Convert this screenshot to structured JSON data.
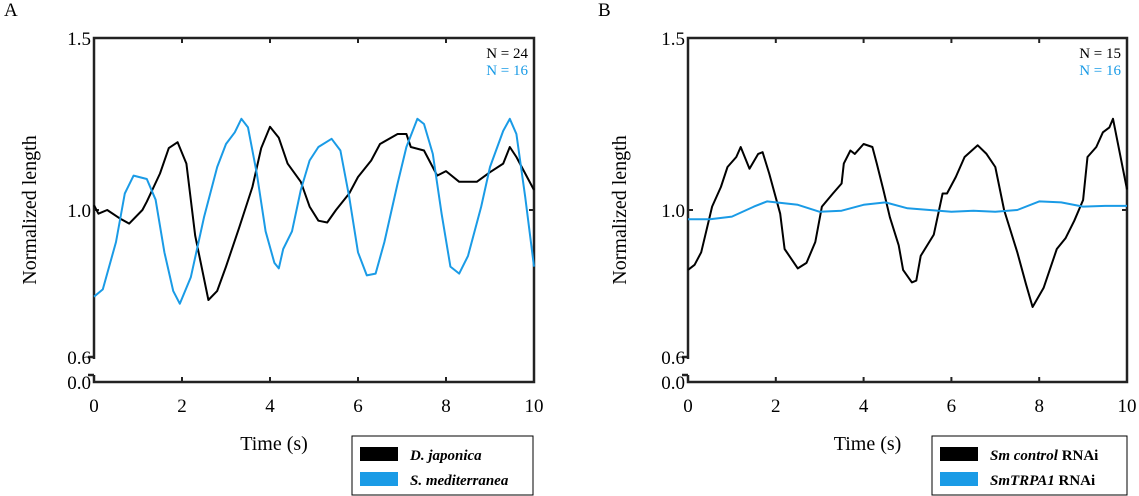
{
  "colors": {
    "black": "#000000",
    "blue": "#1a9be6"
  },
  "chart_data": [
    {
      "type": "line",
      "panel_label": "A",
      "xlabel": "Time (s)",
      "ylabel": "Normalized length",
      "xlim": [
        0,
        10
      ],
      "ylim": [
        0.0,
        1.5
      ],
      "xticks": [
        "0",
        "2",
        "4",
        "6",
        "8",
        "10"
      ],
      "yticks": [
        "0.0",
        "0.6",
        "1.0",
        "1.5"
      ],
      "annotations": [
        {
          "text": "N = 24",
          "color": "black"
        },
        {
          "text": "N = 16",
          "color": "blue"
        }
      ],
      "legend_position": "bottom-right-outside",
      "series": [
        {
          "name": "D. japonica",
          "color": "black",
          "x": [
            0,
            0.1,
            0.3,
            0.6,
            0.8,
            1.1,
            1.2,
            1.5,
            1.7,
            1.9,
            2.1,
            2.3,
            2.6,
            2.8,
            3.0,
            3.3,
            3.6,
            3.8,
            4.0,
            4.2,
            4.4,
            4.7,
            4.9,
            5.1,
            5.3,
            5.5,
            5.8,
            6.0,
            6.3,
            6.5,
            6.9,
            7.1,
            7.2,
            7.5,
            7.8,
            8.0,
            8.3,
            8.7,
            9.0,
            9.3,
            9.45,
            9.6,
            9.8,
            10
          ],
          "y": [
            1.014,
            0.99,
            1.0,
            0.976,
            0.963,
            1.0,
            1.024,
            1.106,
            1.18,
            1.197,
            1.135,
            0.93,
            0.755,
            0.78,
            0.846,
            0.952,
            1.067,
            1.18,
            1.242,
            1.21,
            1.135,
            1.082,
            1.01,
            0.971,
            0.966,
            1.0,
            1.048,
            1.096,
            1.144,
            1.192,
            1.221,
            1.221,
            1.183,
            1.173,
            1.1,
            1.113,
            1.082,
            1.082,
            1.11,
            1.135,
            1.183,
            1.154,
            1.106,
            1.058
          ]
        },
        {
          "name": "S. mediterranea",
          "color": "blue",
          "x": [
            0,
            0.2,
            0.5,
            0.7,
            0.9,
            1.2,
            1.4,
            1.6,
            1.8,
            1.95,
            2.2,
            2.5,
            2.8,
            3.0,
            3.2,
            3.35,
            3.5,
            3.7,
            3.9,
            4.1,
            4.2,
            4.3,
            4.5,
            4.7,
            4.9,
            5.1,
            5.4,
            5.6,
            5.8,
            6.0,
            6.2,
            6.4,
            6.6,
            6.9,
            7.1,
            7.35,
            7.5,
            7.7,
            7.9,
            8.1,
            8.3,
            8.5,
            8.8,
            9.0,
            9.3,
            9.45,
            9.6,
            9.8,
            10
          ],
          "y": [
            0.764,
            0.784,
            0.913,
            1.048,
            1.1,
            1.09,
            1.03,
            0.885,
            0.78,
            0.745,
            0.817,
            0.98,
            1.125,
            1.192,
            1.226,
            1.265,
            1.24,
            1.106,
            0.942,
            0.856,
            0.841,
            0.894,
            0.942,
            1.058,
            1.144,
            1.183,
            1.207,
            1.173,
            1.038,
            0.885,
            0.822,
            0.827,
            0.913,
            1.077,
            1.183,
            1.265,
            1.25,
            1.163,
            0.99,
            0.846,
            0.827,
            0.875,
            1.01,
            1.125,
            1.23,
            1.265,
            1.221,
            1.038,
            0.846
          ]
        }
      ]
    },
    {
      "type": "line",
      "panel_label": "B",
      "xlabel": "Time (s)",
      "ylabel": "Normalized length",
      "xlim": [
        0,
        10
      ],
      "ylim": [
        0.0,
        1.5
      ],
      "xticks": [
        "0",
        "2",
        "4",
        "6",
        "8",
        "10"
      ],
      "yticks": [
        "0.0",
        "0.6",
        "1.0",
        "1.5"
      ],
      "annotations": [
        {
          "text": "N = 15",
          "color": "black"
        },
        {
          "text": "N = 16",
          "color": "blue"
        }
      ],
      "legend_position": "bottom-right-outside",
      "series": [
        {
          "name": "Sm control RNAi",
          "name_italic": "Sm control",
          "name_suffix": " RNAi",
          "color": "black",
          "x": [
            0,
            0.15,
            0.3,
            0.55,
            0.75,
            0.9,
            1.1,
            1.2,
            1.4,
            1.6,
            1.7,
            1.85,
            2.1,
            2.2,
            2.5,
            2.7,
            2.9,
            3.05,
            3.3,
            3.5,
            3.55,
            3.7,
            3.8,
            4.0,
            4.2,
            4.3,
            4.45,
            4.6,
            4.8,
            4.9,
            5.1,
            5.2,
            5.3,
            5.6,
            5.8,
            5.9,
            6.1,
            6.3,
            6.6,
            6.8,
            7.0,
            7.2,
            7.5,
            7.7,
            7.85,
            8.1,
            8.4,
            8.6,
            8.8,
            9.0,
            9.1,
            9.3,
            9.45,
            9.6,
            9.68,
            10
          ],
          "y": [
            0.837,
            0.851,
            0.885,
            1.01,
            1.067,
            1.125,
            1.154,
            1.183,
            1.12,
            1.163,
            1.168,
            1.106,
            0.99,
            0.894,
            0.841,
            0.856,
            0.913,
            1.01,
            1.048,
            1.077,
            1.135,
            1.173,
            1.163,
            1.192,
            1.183,
            1.135,
            1.058,
            0.98,
            0.904,
            0.837,
            0.803,
            0.808,
            0.875,
            0.933,
            1.048,
            1.048,
            1.096,
            1.154,
            1.188,
            1.163,
            1.125,
            1.0,
            0.885,
            0.798,
            0.736,
            0.788,
            0.894,
            0.923,
            0.971,
            1.029,
            1.154,
            1.183,
            1.226,
            1.24,
            1.265,
            1.06
          ]
        },
        {
          "name": "SmTRPA1 RNAi",
          "name_italic": "SmTRPA1",
          "name_suffix": " RNAi",
          "color": "blue",
          "x": [
            0,
            0.5,
            1,
            1.5,
            1.8,
            2.5,
            3,
            3.5,
            4,
            4.5,
            5,
            5.5,
            6,
            6.5,
            7,
            7.5,
            8,
            8.5,
            9,
            9.5,
            10
          ],
          "y": [
            0.975,
            0.975,
            0.982,
            1.01,
            1.025,
            1.015,
            0.995,
            0.998,
            1.015,
            1.022,
            1.005,
            1.0,
            0.995,
            0.998,
            0.995,
            1.0,
            1.025,
            1.022,
            1.01,
            1.012,
            1.012
          ]
        }
      ]
    }
  ]
}
